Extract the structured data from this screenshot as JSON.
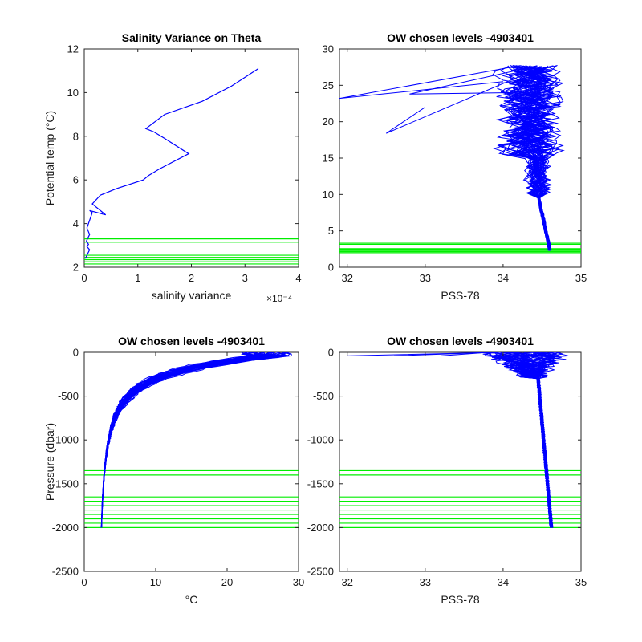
{
  "chart_data": [
    {
      "type": "line",
      "title": "Salinity Variance on Theta",
      "xlabel": "salinity variance",
      "ylabel": "Potential temp (°C)",
      "x_exponent": "×10⁻⁴",
      "xlim": [
        0,
        4
      ],
      "ylim": [
        2,
        12
      ],
      "xticks": [
        0,
        1,
        2,
        3,
        4
      ],
      "yticks": [
        2,
        4,
        6,
        8,
        10,
        12
      ],
      "series": [
        {
          "color": "#0000ff",
          "x": [
            0.02,
            0.1,
            0.05,
            0.08,
            0.04,
            0.1,
            0.05,
            0.15,
            0.1,
            0.4,
            0.15,
            0.3,
            0.6,
            1.1,
            1.2,
            1.4,
            1.95,
            1.5,
            1.3,
            1.15,
            1.5,
            2.2,
            2.75,
            3.25
          ],
          "y": [
            2.4,
            2.8,
            2.95,
            3.05,
            3.2,
            3.5,
            3.8,
            4.5,
            4.6,
            4.4,
            4.9,
            5.3,
            5.6,
            6.0,
            6.2,
            6.5,
            7.2,
            7.9,
            8.2,
            8.35,
            9.0,
            9.6,
            10.3,
            11.1
          ]
        }
      ],
      "hlines": [
        2.15,
        2.25,
        2.35,
        2.45,
        2.55,
        3.15,
        3.3
      ]
    },
    {
      "type": "line",
      "title": "OW chosen levels -4903401",
      "xlabel": "PSS-78",
      "ylabel": "",
      "xlim": [
        31.9,
        35
      ],
      "ylim": [
        0,
        30
      ],
      "xticks": [
        32,
        33,
        34,
        35
      ],
      "yticks": [
        0,
        5,
        10,
        15,
        20,
        25,
        30
      ],
      "hlines": [
        2.0,
        2.15,
        2.3,
        2.45,
        2.55,
        3.15,
        3.3
      ],
      "profiles": 40
    },
    {
      "type": "line",
      "title": "OW chosen levels -4903401",
      "xlabel": "°C",
      "ylabel": "Pressure (dbar)",
      "xlim": [
        0,
        30
      ],
      "ylim": [
        -2500,
        0
      ],
      "xticks": [
        0,
        10,
        20,
        30
      ],
      "yticks": [
        -2500,
        -2000,
        -1500,
        -1000,
        -500,
        0
      ],
      "hlines": [
        -1350,
        -1400,
        -1650,
        -1700,
        -1750,
        -1800,
        -1850,
        -1900,
        -1950,
        -2000
      ],
      "profiles": 40
    },
    {
      "type": "line",
      "title": "OW chosen levels -4903401",
      "xlabel": "PSS-78",
      "ylabel": "",
      "xlim": [
        31.9,
        35
      ],
      "ylim": [
        -2500,
        0
      ],
      "xticks": [
        32,
        33,
        34,
        35
      ],
      "yticks": [
        -2500,
        -2000,
        -1500,
        -1000,
        -500,
        0
      ],
      "hlines": [
        -1350,
        -1400,
        -1650,
        -1700,
        -1750,
        -1800,
        -1850,
        -1900,
        -1950,
        -2000
      ],
      "profiles": 40
    }
  ]
}
